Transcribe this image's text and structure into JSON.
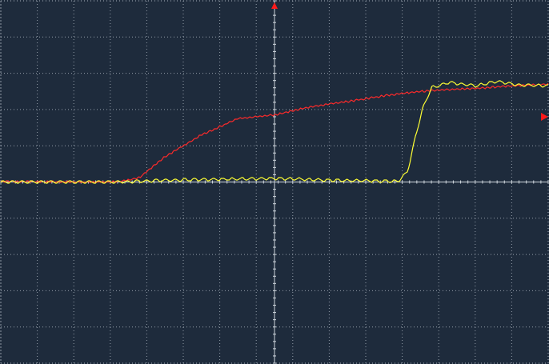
{
  "screen": {
    "background": "#1e2b3c",
    "grid_color": "#b9c2cc",
    "axis_color": "#cfd6dd"
  },
  "chart_data": {
    "type": "line",
    "grid": true,
    "divisions": {
      "x": 15,
      "y": 10
    },
    "xlim": [
      0,
      15
    ],
    "ylim": [
      -5,
      5
    ],
    "markers": {
      "trigger_position": {
        "x": 7.5,
        "color": "#ff1a1a"
      },
      "trigger_level": {
        "y": 1.8,
        "color": "#ff1a1a"
      }
    },
    "series": [
      {
        "color": "#ff2a2a",
        "values": [
          [
            0,
            0.02
          ],
          [
            2.0,
            0.0
          ],
          [
            3.0,
            0.0
          ],
          [
            3.5,
            0.05
          ],
          [
            3.8,
            0.12
          ],
          [
            4.5,
            0.7
          ],
          [
            5.5,
            1.3
          ],
          [
            6.5,
            1.75
          ],
          [
            7.5,
            1.85
          ],
          [
            8.5,
            2.08
          ],
          [
            9.5,
            2.22
          ],
          [
            10.5,
            2.38
          ],
          [
            11.5,
            2.5
          ],
          [
            12.2,
            2.55
          ],
          [
            13.0,
            2.58
          ],
          [
            14.0,
            2.65
          ],
          [
            15.0,
            2.7
          ]
        ]
      },
      {
        "color": "#ffff33",
        "values": [
          [
            0,
            0.0
          ],
          [
            3.3,
            0.0
          ],
          [
            4.5,
            0.05
          ],
          [
            7.5,
            0.1
          ],
          [
            9.0,
            0.05
          ],
          [
            10.9,
            0.02
          ],
          [
            11.15,
            0.3
          ],
          [
            11.35,
            1.2
          ],
          [
            11.55,
            2.0
          ],
          [
            11.8,
            2.6
          ],
          [
            12.3,
            2.75
          ],
          [
            13.0,
            2.65
          ],
          [
            13.6,
            2.78
          ],
          [
            14.2,
            2.68
          ],
          [
            15.0,
            2.65
          ]
        ]
      }
    ]
  }
}
